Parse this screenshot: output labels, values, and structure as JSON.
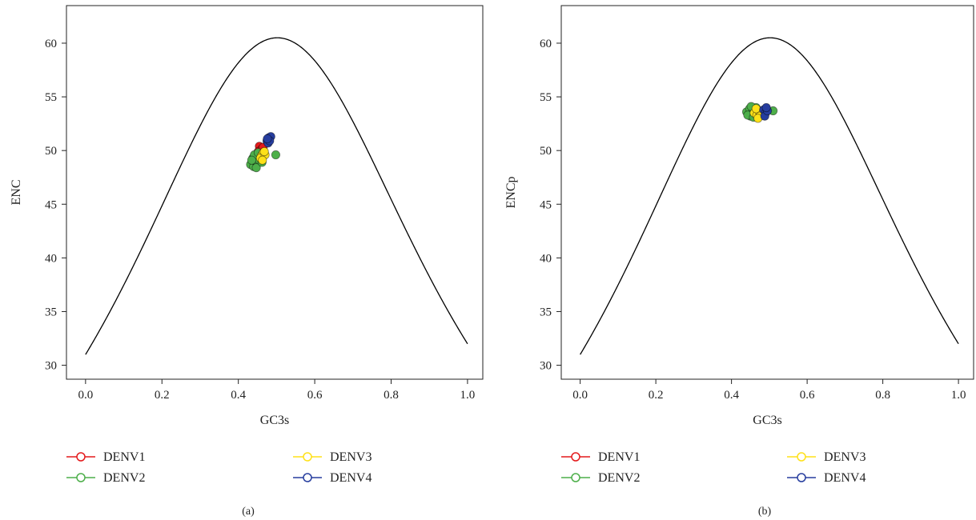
{
  "chart_data": [
    {
      "type": "scatter",
      "panel_label": "(a)",
      "xlabel": "GC3s",
      "ylabel": "ENC",
      "xlim": [
        -0.05,
        1.04
      ],
      "ylim": [
        28.7,
        63.5
      ],
      "xticks": [
        "0.0",
        "0.2",
        "0.4",
        "0.6",
        "0.8",
        "1.0"
      ],
      "yticks": [
        "30",
        "35",
        "40",
        "45",
        "50",
        "55",
        "60"
      ],
      "grid": false,
      "legend_placement": "bottom",
      "expected_curve": "ENC = 2 + s + 29 / (s^2 + (1 - s)^2)",
      "series": [
        {
          "name": "DENV1",
          "color": "#e41a1c",
          "points": [
            [
              0.455,
              50.4
            ],
            [
              0.46,
              50.1
            ],
            [
              0.452,
              49.9
            ],
            [
              0.465,
              50.3
            ],
            [
              0.458,
              49.6
            ]
          ]
        },
        {
          "name": "DENV2",
          "color": "#4daf4a",
          "points": [
            [
              0.432,
              48.7
            ],
            [
              0.44,
              48.5
            ],
            [
              0.445,
              49.0
            ],
            [
              0.45,
              48.8
            ],
            [
              0.438,
              49.3
            ],
            [
              0.455,
              49.1
            ],
            [
              0.447,
              48.4
            ],
            [
              0.46,
              49.4
            ],
            [
              0.442,
              49.6
            ],
            [
              0.435,
              49.1
            ],
            [
              0.452,
              49.8
            ],
            [
              0.462,
              48.9
            ],
            [
              0.498,
              49.6
            ]
          ]
        },
        {
          "name": "DENV3",
          "color": "#ffe119",
          "points": [
            [
              0.46,
              49.5
            ],
            [
              0.465,
              49.8
            ],
            [
              0.458,
              49.3
            ],
            [
              0.47,
              49.6
            ],
            [
              0.463,
              49.1
            ],
            [
              0.468,
              49.9
            ]
          ]
        },
        {
          "name": "DENV4",
          "color": "#263d9e",
          "points": [
            [
              0.475,
              50.9
            ],
            [
              0.48,
              51.2
            ],
            [
              0.478,
              50.7
            ],
            [
              0.485,
              51.3
            ],
            [
              0.482,
              50.9
            ],
            [
              0.476,
              51.1
            ]
          ]
        }
      ]
    },
    {
      "type": "scatter",
      "panel_label": "(b)",
      "xlabel": "GC3s",
      "ylabel": "ENCp",
      "xlim": [
        -0.05,
        1.04
      ],
      "ylim": [
        28.7,
        63.5
      ],
      "xticks": [
        "0.0",
        "0.2",
        "0.4",
        "0.6",
        "0.8",
        "1.0"
      ],
      "yticks": [
        "30",
        "35",
        "40",
        "45",
        "50",
        "55",
        "60"
      ],
      "grid": false,
      "legend_placement": "bottom",
      "expected_curve": "ENC = 2 + s + 29 / (s^2 + (1 - s)^2)",
      "series": [
        {
          "name": "DENV1",
          "color": "#e41a1c",
          "points": [
            [
              0.47,
              53.6
            ],
            [
              0.475,
              53.4
            ]
          ]
        },
        {
          "name": "DENV2",
          "color": "#4daf4a",
          "points": [
            [
              0.44,
              53.6
            ],
            [
              0.448,
              53.9
            ],
            [
              0.455,
              53.5
            ],
            [
              0.45,
              53.2
            ],
            [
              0.46,
              53.8
            ],
            [
              0.443,
              53.3
            ],
            [
              0.465,
              54.0
            ],
            [
              0.458,
              53.1
            ],
            [
              0.452,
              54.1
            ],
            [
              0.47,
              53.4
            ],
            [
              0.51,
              53.7
            ]
          ]
        },
        {
          "name": "DENV3",
          "color": "#ffe119",
          "points": [
            [
              0.46,
              53.5
            ],
            [
              0.467,
              53.3
            ],
            [
              0.472,
              53.7
            ],
            [
              0.465,
              53.9
            ],
            [
              0.475,
              53.2
            ],
            [
              0.47,
              53.0
            ]
          ]
        },
        {
          "name": "DENV4",
          "color": "#263d9e",
          "points": [
            [
              0.485,
              53.8
            ],
            [
              0.49,
              53.5
            ],
            [
              0.488,
              53.2
            ],
            [
              0.495,
              53.7
            ],
            [
              0.492,
              54.0
            ]
          ]
        }
      ]
    }
  ]
}
